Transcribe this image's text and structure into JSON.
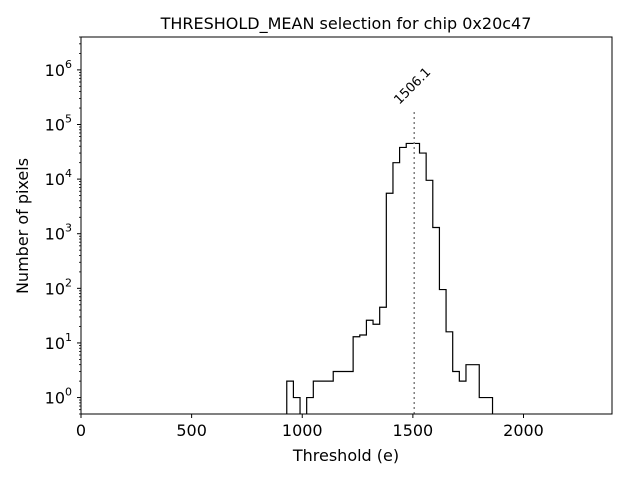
{
  "chart_data": {
    "type": "histogram",
    "title": "THRESHOLD_MEAN selection for chip 0x20c47",
    "xlabel": "Threshold (e)",
    "ylabel": "Number of pixels",
    "xlim": [
      0,
      2400
    ],
    "ylim": [
      0.5,
      4000000
    ],
    "yscale": "log",
    "xticks": [
      {
        "value": 0,
        "label": "0"
      },
      {
        "value": 500,
        "label": "500"
      },
      {
        "value": 1000,
        "label": "1000"
      },
      {
        "value": 1500,
        "label": "1500"
      },
      {
        "value": 2000,
        "label": "2000"
      }
    ],
    "yticks": [
      {
        "value": 1,
        "exp": "0"
      },
      {
        "value": 10,
        "exp": "1"
      },
      {
        "value": 100,
        "exp": "2"
      },
      {
        "value": 1000,
        "exp": "3"
      },
      {
        "value": 10000,
        "exp": "4"
      },
      {
        "value": 100000,
        "exp": "5"
      },
      {
        "value": 1000000,
        "exp": "6"
      }
    ],
    "tick_base": "10",
    "bin_width": 30,
    "bins_start": [
      930,
      960,
      990,
      1020,
      1050,
      1080,
      1110,
      1140,
      1170,
      1200,
      1230,
      1260,
      1290,
      1320,
      1350,
      1380,
      1410,
      1440,
      1470,
      1500,
      1530,
      1560,
      1590,
      1620,
      1650,
      1680,
      1710,
      1740,
      1770,
      1800,
      1830
    ],
    "counts": [
      2,
      1,
      0,
      1,
      2,
      2,
      2,
      3,
      3,
      3,
      13,
      14,
      26,
      22,
      45,
      5500,
      20000,
      38000,
      45000,
      45000,
      30000,
      9500,
      1300,
      95,
      16,
      3,
      2,
      4,
      4,
      1,
      1
    ],
    "threshold_line": {
      "value": 1506.1,
      "label": "1506.1",
      "color": "#808080"
    },
    "line_color": "#000000"
  }
}
